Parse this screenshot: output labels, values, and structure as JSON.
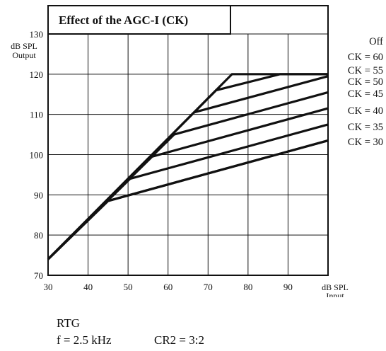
{
  "chart_data": {
    "type": "line",
    "title": "Effect of the AGC-I (CK)",
    "xlabel": [
      "dB SPL",
      "Input"
    ],
    "ylabel": [
      "dB SPL",
      "Output"
    ],
    "xlim": [
      30,
      100
    ],
    "ylim": [
      70,
      130
    ],
    "xticks": [
      30,
      40,
      50,
      60,
      70,
      80,
      90
    ],
    "yticks": [
      70,
      80,
      90,
      100,
      110,
      120,
      130
    ],
    "grid": true,
    "colors": {
      "line": "#111111",
      "grid": "#111111",
      "background": "#ffffff"
    },
    "series": [
      {
        "name": "Off",
        "x": [
          30,
          76,
          100
        ],
        "y": [
          74,
          120,
          120
        ]
      },
      {
        "name": "CK = 60",
        "x": [
          30,
          72,
          88,
          100
        ],
        "y": [
          74,
          116,
          120,
          120
        ]
      },
      {
        "name": "CK = 55",
        "x": [
          30,
          66.5,
          100
        ],
        "y": [
          74,
          110.5,
          119.5
        ]
      },
      {
        "name": "CK = 50",
        "x": [
          30,
          61.5,
          100
        ],
        "y": [
          74,
          105,
          115.5
        ]
      },
      {
        "name": "CK = 45",
        "x": [
          30,
          56,
          100
        ],
        "y": [
          74,
          99.5,
          111.5
        ]
      },
      {
        "name": "CK = 40",
        "x": [
          30,
          50.5,
          100
        ],
        "y": [
          74,
          94,
          107.5
        ]
      },
      {
        "name": "CK = 35",
        "x": [
          30,
          45,
          100
        ],
        "y": [
          74,
          88.5,
          103.5
        ]
      },
      {
        "name": "CK = 30",
        "x": [
          30,
          45,
          100
        ],
        "y": [
          74,
          88.5,
          103.5
        ]
      }
    ]
  },
  "footnote": {
    "mode": "RTG",
    "frequency": "f = 2.5 kHz",
    "ratio": "CR2 = 3:2"
  }
}
